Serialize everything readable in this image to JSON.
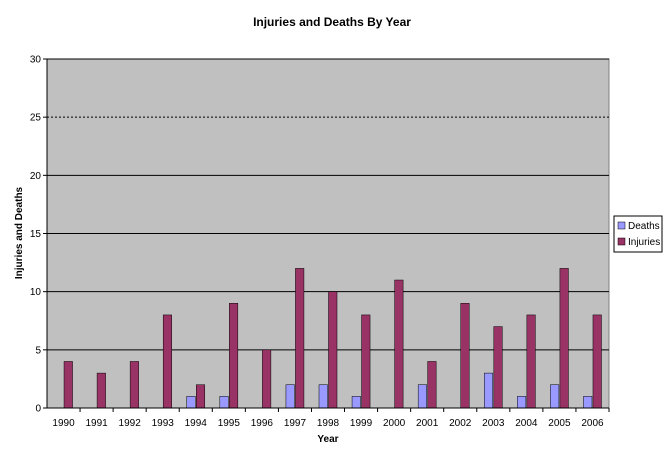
{
  "chart_data": {
    "type": "bar",
    "title": "Injuries and Deaths By Year",
    "xlabel": "Year",
    "ylabel": "Injuries and Deaths",
    "ylim": [
      0,
      30
    ],
    "yticks": [
      0,
      5,
      10,
      15,
      20,
      25,
      30
    ],
    "grid": true,
    "legend_position": "right",
    "categories": [
      "1990",
      "1991",
      "1992",
      "1993",
      "1994",
      "1995",
      "1996",
      "1997",
      "1998",
      "1999",
      "2000",
      "2001",
      "2002",
      "2003",
      "2004",
      "2005",
      "2006"
    ],
    "series": [
      {
        "name": "Deaths",
        "color": "#9999ff",
        "values": [
          0,
          0,
          0,
          0,
          1,
          1,
          0,
          2,
          2,
          1,
          0,
          2,
          0,
          3,
          1,
          2,
          1
        ]
      },
      {
        "name": "Injuries",
        "color": "#993366",
        "values": [
          4,
          3,
          4,
          8,
          2,
          9,
          5,
          12,
          10,
          8,
          11,
          4,
          9,
          7,
          8,
          12,
          8
        ]
      }
    ],
    "plot_background": "#c0c0c0"
  }
}
